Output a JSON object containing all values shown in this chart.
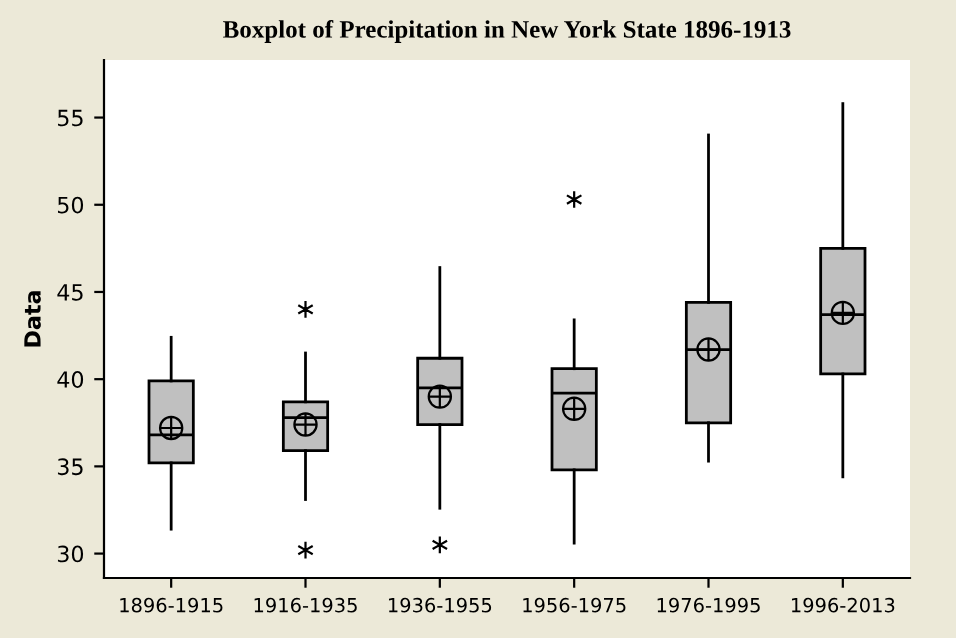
{
  "chart_data": {
    "type": "box",
    "title": "Boxplot of Precipitation in New York State 1896-1913",
    "ylabel": "Data",
    "categories": [
      "1896-1915",
      "1916-1935",
      "1936-1955",
      "1956-1975",
      "1976-1995",
      "1996-2013"
    ],
    "color": "#c0c0c0",
    "boxes": [
      {
        "low": 31.4,
        "q1": 35.2,
        "median": 36.8,
        "q3": 39.9,
        "high": 42.4,
        "mean": 37.2
      },
      {
        "low": 33.1,
        "q1": 35.9,
        "median": 37.8,
        "q3": 38.7,
        "high": 41.5,
        "mean": 37.4,
        "outliers": [
          44.0,
          30.2
        ]
      },
      {
        "low": 32.6,
        "q1": 37.4,
        "median": 39.5,
        "q3": 41.2,
        "high": 46.4,
        "mean": 39.0,
        "outliers": [
          30.5
        ]
      },
      {
        "low": 30.6,
        "q1": 34.8,
        "median": 39.2,
        "q3": 40.6,
        "high": 43.4,
        "mean": 38.3,
        "outliers": [
          50.3
        ]
      },
      {
        "low": 35.3,
        "q1": 37.5,
        "median": 41.7,
        "q3": 44.4,
        "high": 54.0,
        "mean": 41.7
      },
      {
        "low": 34.4,
        "q1": 40.3,
        "median": 43.7,
        "q3": 47.5,
        "high": 55.8,
        "mean": 43.8
      }
    ],
    "ylim": [
      28.6,
      58.3
    ],
    "yticks": [
      30,
      35,
      40,
      45,
      50,
      55
    ],
    "grid": false,
    "legend": false
  }
}
